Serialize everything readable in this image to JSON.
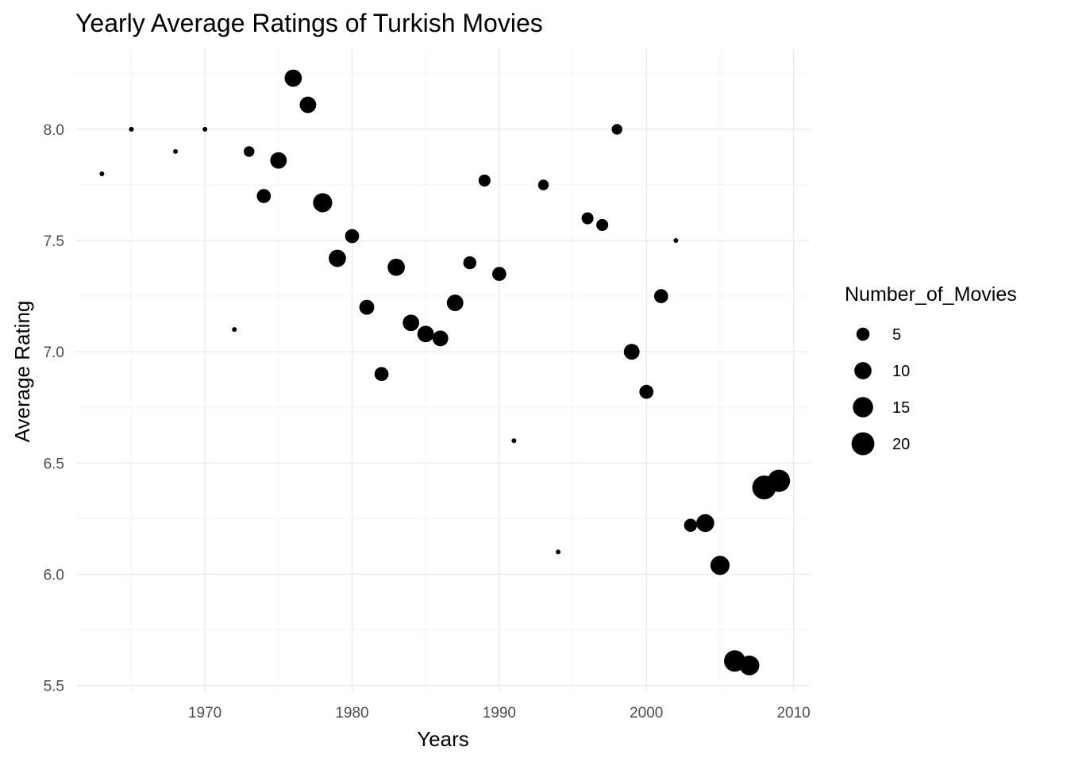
{
  "chart_data": {
    "type": "scatter",
    "title": "Yearly Average Ratings of Turkish Movies",
    "xlabel": "Years",
    "ylabel": "Average Rating",
    "xlim": [
      1961.2,
      2011.1
    ],
    "ylim": [
      5.47,
      8.36
    ],
    "x_ticks": [
      1970,
      1980,
      1990,
      2000,
      2010
    ],
    "y_ticks": [
      5.5,
      6.0,
      6.5,
      7.0,
      7.5,
      8.0
    ],
    "x_tick_labels": [
      "1970",
      "1980",
      "1990",
      "2000",
      "2010"
    ],
    "y_tick_labels": [
      "5.5",
      "6.0",
      "6.5",
      "7.0",
      "7.5",
      "8.0"
    ],
    "grid": true,
    "point_color": "#000000",
    "size_legend": {
      "title": "Number_of_Movies",
      "placement": "right",
      "breaks": [
        5,
        10,
        15,
        20
      ],
      "labels": [
        "5",
        "10",
        "15",
        "20"
      ]
    },
    "points": [
      {
        "x": 1963,
        "y": 7.8,
        "size": 1
      },
      {
        "x": 1965,
        "y": 8.0,
        "size": 1
      },
      {
        "x": 1968,
        "y": 7.9,
        "size": 1
      },
      {
        "x": 1970,
        "y": 8.0,
        "size": 1
      },
      {
        "x": 1972,
        "y": 7.1,
        "size": 1
      },
      {
        "x": 1973,
        "y": 7.9,
        "size": 3
      },
      {
        "x": 1974,
        "y": 7.7,
        "size": 6
      },
      {
        "x": 1975,
        "y": 7.86,
        "size": 9
      },
      {
        "x": 1976,
        "y": 8.23,
        "size": 10
      },
      {
        "x": 1977,
        "y": 8.11,
        "size": 9
      },
      {
        "x": 1978,
        "y": 7.67,
        "size": 13
      },
      {
        "x": 1979,
        "y": 7.42,
        "size": 10
      },
      {
        "x": 1980,
        "y": 7.52,
        "size": 6
      },
      {
        "x": 1981,
        "y": 7.2,
        "size": 7
      },
      {
        "x": 1982,
        "y": 6.9,
        "size": 6
      },
      {
        "x": 1983,
        "y": 7.38,
        "size": 10
      },
      {
        "x": 1984,
        "y": 7.13,
        "size": 9
      },
      {
        "x": 1985,
        "y": 7.08,
        "size": 9
      },
      {
        "x": 1986,
        "y": 7.06,
        "size": 8
      },
      {
        "x": 1987,
        "y": 7.22,
        "size": 9
      },
      {
        "x": 1988,
        "y": 7.4,
        "size": 5
      },
      {
        "x": 1989,
        "y": 7.77,
        "size": 4
      },
      {
        "x": 1990,
        "y": 7.35,
        "size": 6
      },
      {
        "x": 1991,
        "y": 6.6,
        "size": 1
      },
      {
        "x": 1993,
        "y": 7.75,
        "size": 3
      },
      {
        "x": 1994,
        "y": 6.1,
        "size": 1
      },
      {
        "x": 1996,
        "y": 7.6,
        "size": 4
      },
      {
        "x": 1997,
        "y": 7.57,
        "size": 4
      },
      {
        "x": 1998,
        "y": 8.0,
        "size": 3
      },
      {
        "x": 1999,
        "y": 7.0,
        "size": 8
      },
      {
        "x": 2000,
        "y": 6.82,
        "size": 6
      },
      {
        "x": 2001,
        "y": 7.25,
        "size": 6
      },
      {
        "x": 2002,
        "y": 7.5,
        "size": 1
      },
      {
        "x": 2003,
        "y": 6.22,
        "size": 5
      },
      {
        "x": 2004,
        "y": 6.23,
        "size": 11
      },
      {
        "x": 2005,
        "y": 6.04,
        "size": 13
      },
      {
        "x": 2006,
        "y": 5.61,
        "size": 17
      },
      {
        "x": 2007,
        "y": 5.59,
        "size": 14
      },
      {
        "x": 2008,
        "y": 6.39,
        "size": 22
      },
      {
        "x": 2009,
        "y": 6.42,
        "size": 19
      }
    ]
  }
}
